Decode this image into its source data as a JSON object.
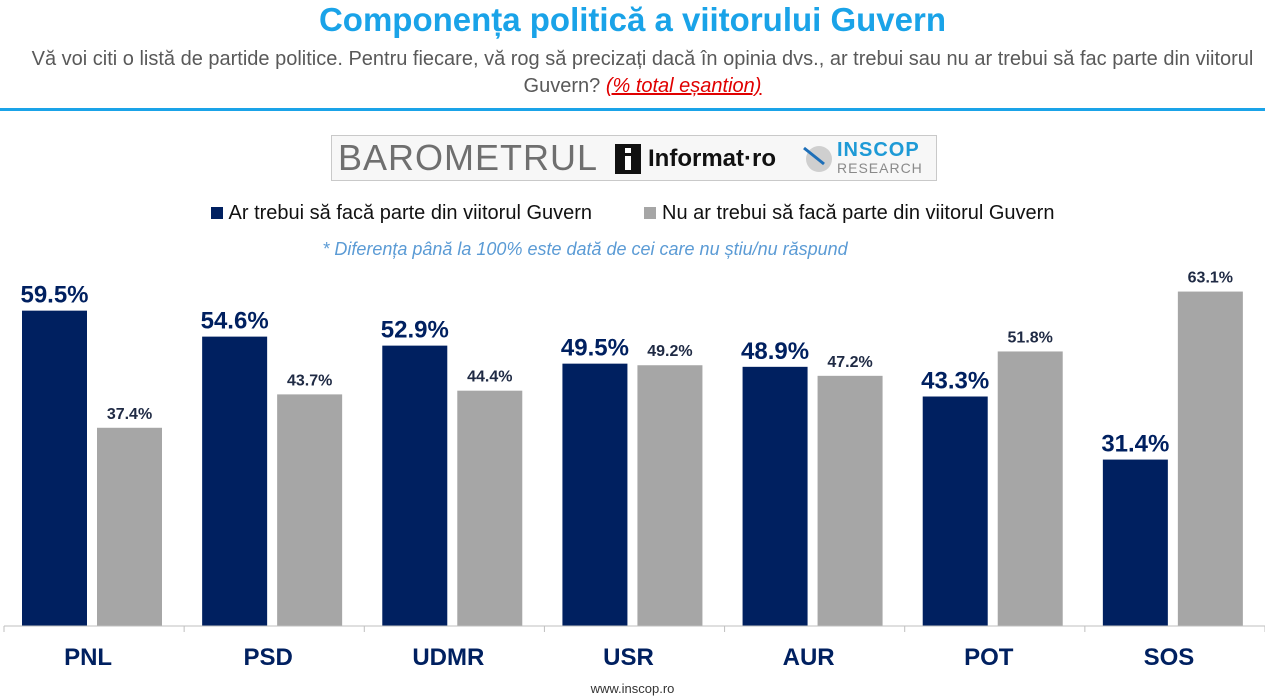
{
  "header": {
    "title": "Componența politică a viitorului Guvern",
    "subtitle": "Vă voi citi o listă de partide politice. Pentru fiecare, vă rog să precizați dacă în opinia dvs., ar trebui sau nu ar trebui să fac parte din viitorul Guvern?",
    "subtitle_highlight": "(% total eșantion)"
  },
  "logos": {
    "barometrul": "BAROMETRUL",
    "informat": "Informat·ro",
    "inscop": "INSCOP",
    "research": "RESEARCH"
  },
  "note": "* Diferența până la 100% este dată de cei care nu știu/nu răspund",
  "footer": "www.inscop.ro",
  "colors": {
    "accent": "#1aa3e8",
    "yes": "#002060",
    "no": "#a6a6a6",
    "note": "#5b9bd5"
  },
  "chart_data": {
    "type": "bar",
    "categories": [
      "PNL",
      "PSD",
      "UDMR",
      "USR",
      "AUR",
      "POT",
      "SOS"
    ],
    "series": [
      {
        "name": "Ar trebui să facă parte din viitorul Guvern",
        "values": [
          59.5,
          54.6,
          52.9,
          49.5,
          48.9,
          43.3,
          31.4
        ]
      },
      {
        "name": "Nu ar trebui să facă parte din viitorul Guvern",
        "values": [
          37.4,
          43.7,
          44.4,
          49.2,
          47.2,
          51.8,
          63.1
        ]
      }
    ],
    "value_format": "%",
    "ylim": [
      0,
      70
    ],
    "grid": false,
    "legend_position": "top"
  }
}
